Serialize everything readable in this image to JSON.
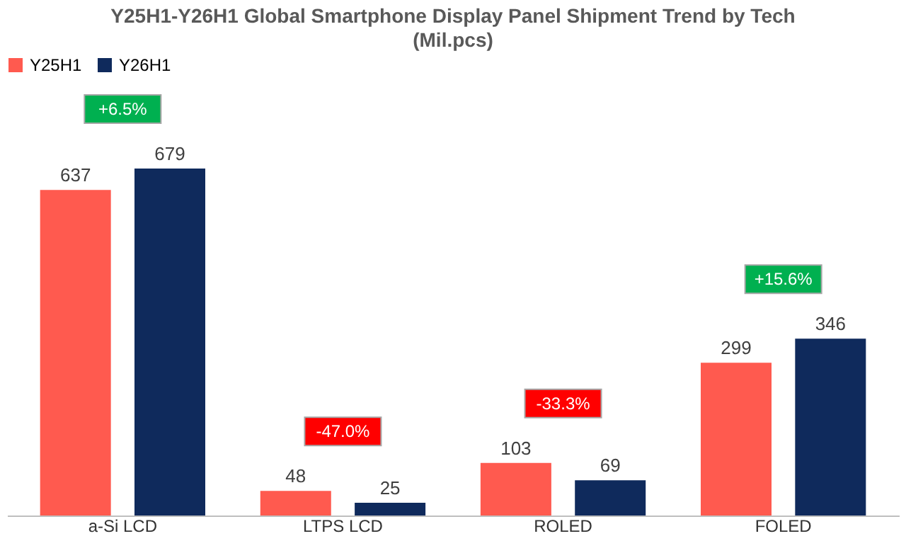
{
  "chart_data": {
    "type": "bar",
    "title": "Y25H1-Y26H1 Global Smartphone Display Panel Shipment Trend by Tech",
    "subtitle": "(Mil.pcs)",
    "categories": [
      "a-Si LCD",
      "LTPS LCD",
      "ROLED",
      "FOLED"
    ],
    "series": [
      {
        "name": "Y25H1",
        "color": "#ff5a4f",
        "values": [
          637,
          48,
          103,
          299
        ]
      },
      {
        "name": "Y26H1",
        "color": "#0f2a5c",
        "values": [
          679,
          25,
          69,
          346
        ]
      }
    ],
    "data_labels": true,
    "legend": "top",
    "grid": false,
    "annotations": [
      "+6.5%",
      "-47.0%",
      "-33.3%",
      "+15.6%"
    ]
  }
}
